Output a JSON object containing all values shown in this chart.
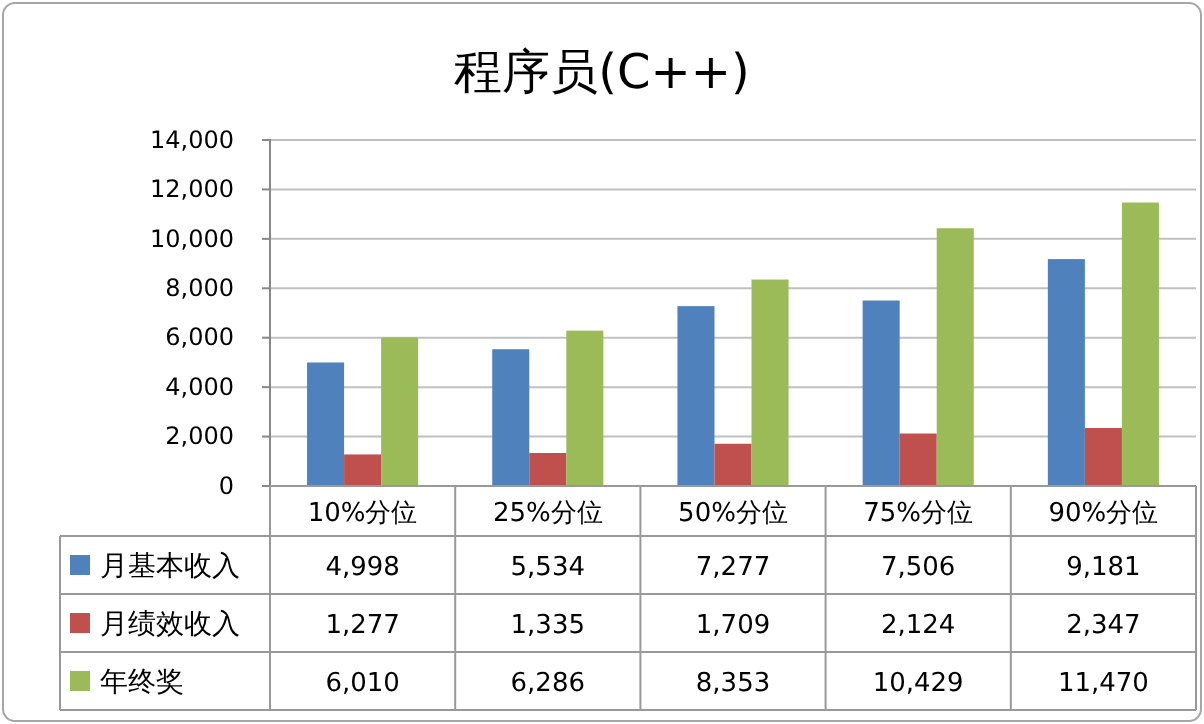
{
  "chart_data": {
    "type": "bar",
    "title": "程序员(C++)",
    "categories": [
      "10%分位",
      "25%分位",
      "50%分位",
      "75%分位",
      "90%分位"
    ],
    "series": [
      {
        "name": "月基本收入",
        "color": "#4f81bd",
        "values": [
          4998,
          5534,
          7277,
          7506,
          9181
        ],
        "value_labels": [
          "4,998",
          "5,534",
          "7,277",
          "7,506",
          "9,181"
        ]
      },
      {
        "name": "月绩效收入",
        "color": "#c0504d",
        "values": [
          1277,
          1335,
          1709,
          2124,
          2347
        ],
        "value_labels": [
          "1,277",
          "1,335",
          "1,709",
          "2,124",
          "2,347"
        ]
      },
      {
        "name": "年终奖",
        "color": "#9bbb59",
        "values": [
          6010,
          6286,
          8353,
          10429,
          11470
        ],
        "value_labels": [
          "6,010",
          "6,286",
          "8,353",
          "10,429",
          "11,470"
        ]
      }
    ],
    "ylim": [
      0,
      14000
    ],
    "yticks": [
      0,
      {
        "value": 2000,
        "label": "2,000"
      },
      {
        "value": 4000,
        "label": "4,000"
      },
      {
        "value": 6000,
        "label": "6,000"
      },
      {
        "value": 8000,
        "label": "8,000"
      },
      {
        "value": 10000,
        "label": "10,000"
      },
      {
        "value": 12000,
        "label": "12,000"
      },
      {
        "value": 14000,
        "label": "14,000"
      }
    ],
    "grid": "y",
    "legend": "bottom"
  }
}
